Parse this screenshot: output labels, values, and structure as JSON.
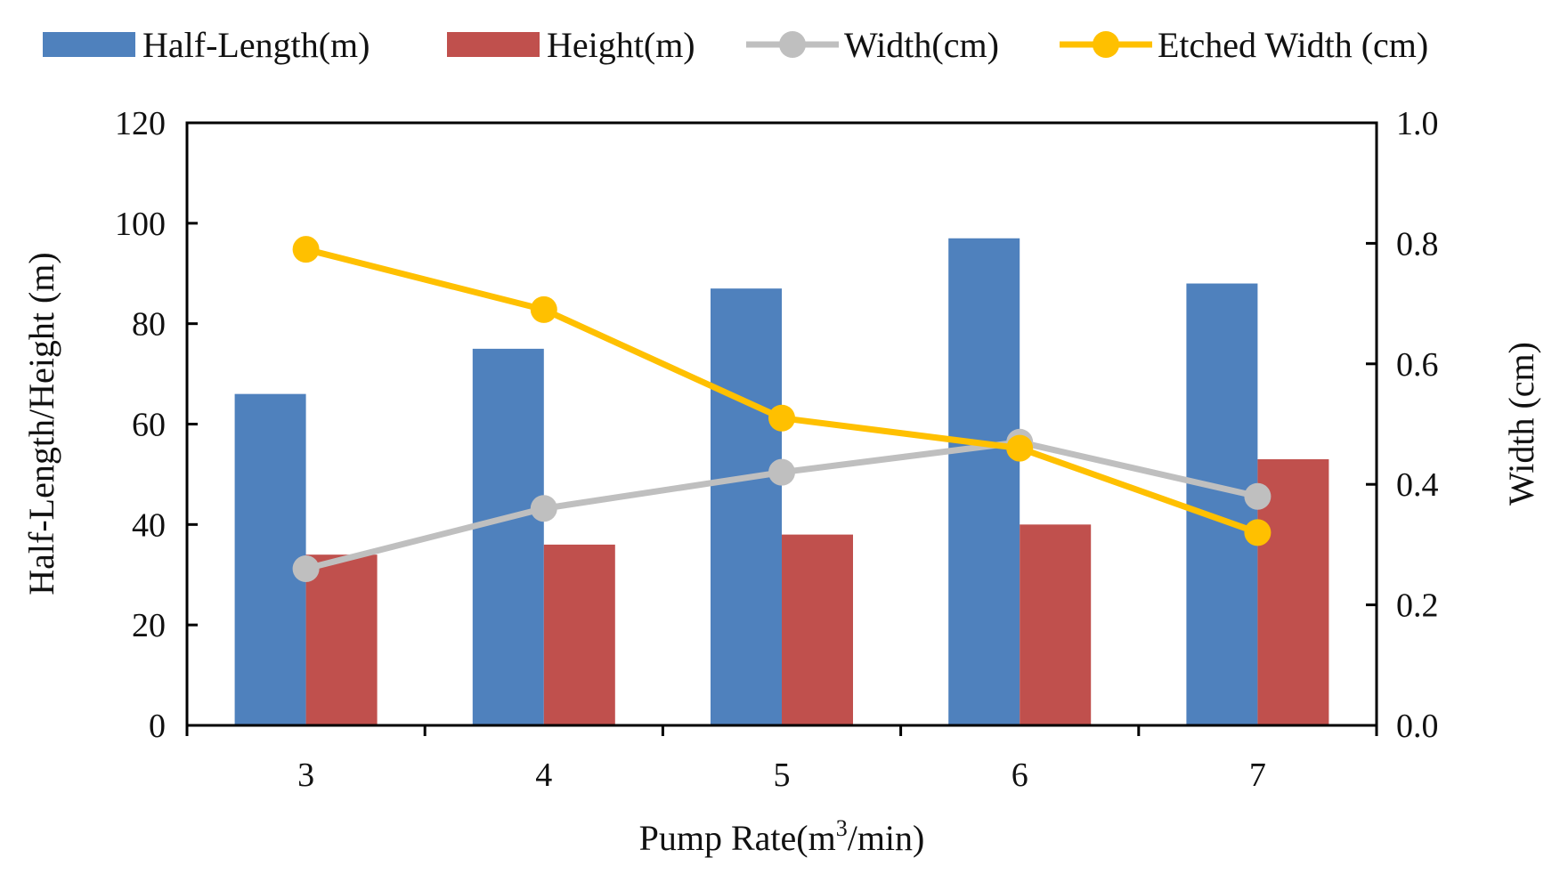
{
  "chart_data": {
    "type": "bar",
    "title": "",
    "categories": [
      "3",
      "4",
      "5",
      "6",
      "7"
    ],
    "xlabel_parts": [
      "Pump Rate(m",
      "3",
      "/min)"
    ],
    "ylabel_left": "Half-Length/Height  (m)",
    "ylabel_right": "Width (cm)",
    "ylim_left": [
      0,
      120
    ],
    "ylim_right": [
      0,
      1.0
    ],
    "yticks_left": [
      "0",
      "20",
      "40",
      "60",
      "80",
      "100",
      "120"
    ],
    "yticks_right": [
      "0.0",
      "0.2",
      "0.4",
      "0.6",
      "0.8",
      "1.0"
    ],
    "grid": false,
    "legend_position": "top",
    "bar_series": [
      {
        "name": "Half-Length(m)",
        "color": "#4F81BD",
        "axis": "left",
        "values": [
          66,
          75,
          87,
          97,
          88
        ]
      },
      {
        "name": "Height(m)",
        "color": "#C0504D",
        "axis": "left",
        "values": [
          34,
          36,
          38,
          40,
          53
        ]
      }
    ],
    "line_series": [
      {
        "name": "Width(cm)",
        "color": "#BFBFBF",
        "axis": "right",
        "values": [
          0.26,
          0.36,
          0.42,
          0.47,
          0.38
        ]
      },
      {
        "name": "Etched Width (cm)",
        "color": "#FFC000",
        "axis": "right",
        "values": [
          0.79,
          0.69,
          0.51,
          0.46,
          0.32
        ]
      }
    ]
  }
}
